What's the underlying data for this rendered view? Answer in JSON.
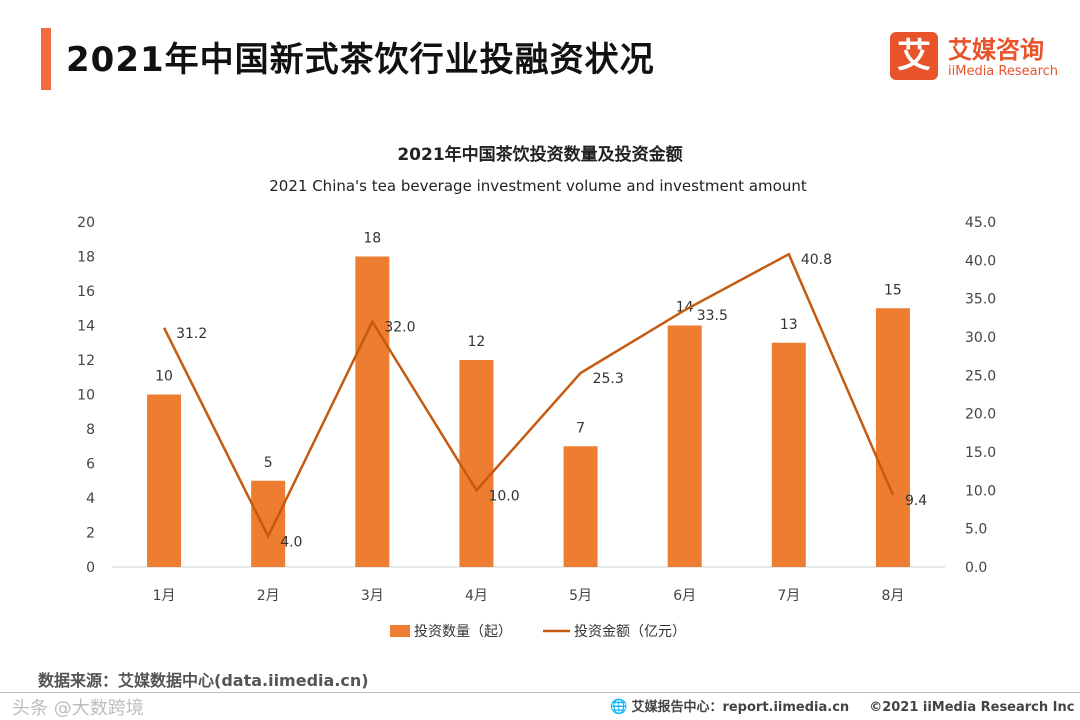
{
  "header": {
    "title": "2021年中国新式茶饮行业投融资状况",
    "logo_mark": "艾",
    "logo_cn": "艾媒咨询",
    "logo_en": "iiMedia Research",
    "accent_color": "#f26a3d"
  },
  "chart_data": {
    "type": "bar+line",
    "title": "2021年中国茶饮投资数量及投资金额",
    "subtitle": "2021 China's tea beverage investment volume and investment amount",
    "categories": [
      "1月",
      "2月",
      "3月",
      "4月",
      "5月",
      "6月",
      "7月",
      "8月"
    ],
    "left_axis": {
      "min": 0,
      "max": 20,
      "step": 2,
      "decimals": 0
    },
    "right_axis": {
      "min": 0,
      "max": 45,
      "step": 5,
      "decimals": 1
    },
    "series": [
      {
        "name": "投资数量（起）",
        "type": "bar",
        "axis": "left",
        "color": "#ed7d31",
        "values": [
          10,
          5,
          18,
          12,
          7,
          14,
          13,
          15
        ]
      },
      {
        "name": "投资金额（亿元）",
        "type": "line",
        "axis": "right",
        "color": "#c55a11",
        "values": [
          31.2,
          4.0,
          32.0,
          10.0,
          25.3,
          33.5,
          40.8,
          9.4
        ]
      }
    ],
    "legend_position": "bottom"
  },
  "footer": {
    "source": "数据来源：艾媒数据中心(data.iimedia.cn)",
    "watermark": "头条 @大数跨境",
    "report_center": "艾媒报告中心：report.iimedia.cn",
    "copyright": "©2021  iiMedia Research  Inc",
    "globe_icon": "globe-icon"
  }
}
